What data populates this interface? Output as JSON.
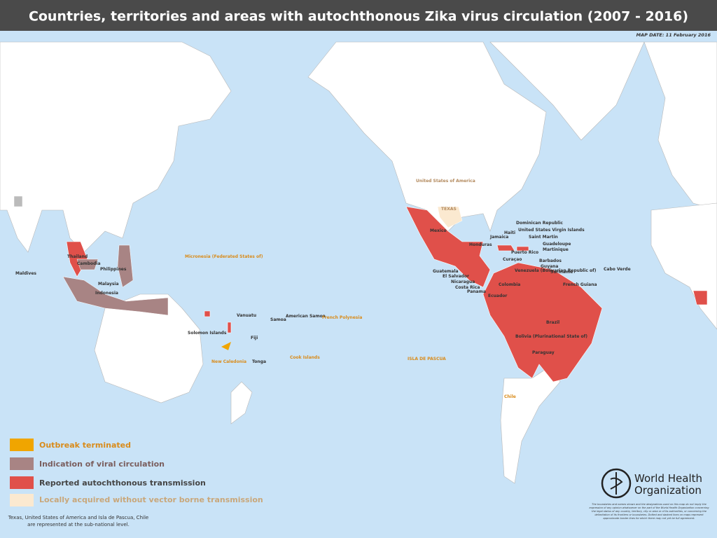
{
  "header": {
    "title": "Countries, territories and areas with autochthonous Zika virus circulation (2007 - 2016)",
    "map_date": "MAP DATE: 11 February 2016"
  },
  "legend": [
    "Outbreak terminated",
    "Indication of viral circulation",
    "Reported autochthonous transmission",
    "Locally acquired without vector borne transmission"
  ],
  "note": [
    "Texas, United States of America and Isla de Pascua, Chile",
    "are represented at the sub-national level."
  ],
  "labels": {
    "reported": [
      "Mexico",
      "Honduras",
      "Jamaica",
      "Haiti",
      "Dominican Republic",
      "United States Virgin Islands",
      "Saint Martin",
      "Guadeloupe",
      "Martinique",
      "Puerto Rico",
      "Barbados",
      "Curaçao",
      "Guyana",
      "Suriname",
      "French Guiana",
      "Guatemala",
      "El Salvador",
      "Nicaragua",
      "Costa Rica",
      "Panama",
      "Colombia",
      "Venezuela (Bolivarian Republic of)",
      "Ecuador",
      "Brazil",
      "Bolivia (Plurinational State of)",
      "Paraguay",
      "Cabo Verde",
      "Thailand",
      "Solomon Islands",
      "Vanuatu",
      "Samoa",
      "American Samoa",
      "Fiji",
      "Tonga",
      "Maldives"
    ],
    "indication": [
      "Cambodia",
      "Philippines",
      "Malaysia",
      "Indonesia"
    ],
    "outbreak_terminated": [
      "Micronesia (Federated States of)",
      "New Caledonia",
      "Cook Islands",
      "French Polynesia",
      "ISLA DE PASCUA",
      "Chile"
    ],
    "local_non_vector": [
      "United States of America",
      "TEXAS"
    ]
  },
  "who": [
    "World Health",
    "Organization"
  ],
  "disclaimer": "The boundaries and names shown and the designations used on this map do not imply the expression of any opinion whatsoever on the part of the World Health Organization concerning the legal status of any country, territory, city or area or of its authorities, or concerning the delimitation of its frontiers or boundaries. Dotted and dashed lines on maps represent approximate border lines for which there may not yet be full agreement."
}
